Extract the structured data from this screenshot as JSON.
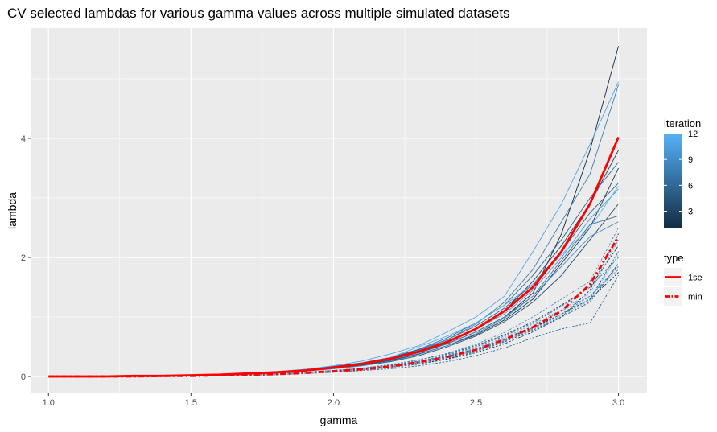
{
  "chart_data": {
    "type": "line",
    "title": "CV selected lambdas for various gamma values across multiple simulated datasets",
    "xlabel": "gamma",
    "ylabel": "lambda",
    "xlim": [
      0.94,
      3.1
    ],
    "ylim": [
      -0.27,
      5.85
    ],
    "xticks": [
      1.0,
      1.5,
      2.0,
      2.5,
      3.0
    ],
    "xtick_labels": [
      "1.0",
      "1.5",
      "2.0",
      "2.5",
      "3.0"
    ],
    "yticks": [
      0,
      2,
      4
    ],
    "ytick_labels": [
      "0",
      "2",
      "4"
    ],
    "grid": true,
    "legend_position": "right",
    "colors": {
      "panel": "#ebebeb",
      "grid": "#ffffff",
      "iteration_low": "#132b43",
      "iteration_high": "#56b1f7",
      "summary": "#ff0000"
    },
    "x": [
      1.0,
      1.1,
      1.2,
      1.3,
      1.4,
      1.5,
      1.6,
      1.7,
      1.8,
      1.9,
      2.0,
      2.1,
      2.2,
      2.3,
      2.4,
      2.5,
      2.6,
      2.7,
      2.8,
      2.9,
      3.0
    ],
    "series": [
      {
        "type": "1se",
        "iteration": 1,
        "values": [
          0,
          0,
          0,
          0.01,
          0.01,
          0.02,
          0.03,
          0.05,
          0.07,
          0.11,
          0.15,
          0.21,
          0.29,
          0.4,
          0.55,
          0.75,
          1.0,
          1.4,
          2.4,
          3.8,
          5.55
        ]
      },
      {
        "type": "1se",
        "iteration": 2,
        "values": [
          0,
          0,
          0,
          0.01,
          0.01,
          0.02,
          0.03,
          0.04,
          0.06,
          0.1,
          0.14,
          0.19,
          0.27,
          0.38,
          0.52,
          0.7,
          0.95,
          1.3,
          1.9,
          2.5,
          3.5
        ]
      },
      {
        "type": "1se",
        "iteration": 3,
        "values": [
          0,
          0,
          0,
          0.01,
          0.01,
          0.02,
          0.03,
          0.05,
          0.07,
          0.1,
          0.15,
          0.2,
          0.28,
          0.42,
          0.6,
          0.8,
          1.1,
          1.6,
          2.2,
          2.9,
          3.8
        ]
      },
      {
        "type": "1se",
        "iteration": 4,
        "values": [
          0,
          0,
          0,
          0,
          0.01,
          0.02,
          0.02,
          0.04,
          0.06,
          0.09,
          0.13,
          0.18,
          0.25,
          0.35,
          0.5,
          0.68,
          0.92,
          1.25,
          1.7,
          2.3,
          2.9
        ]
      },
      {
        "type": "1se",
        "iteration": 5,
        "values": [
          0,
          0,
          0,
          0.01,
          0.01,
          0.02,
          0.03,
          0.05,
          0.07,
          0.11,
          0.16,
          0.22,
          0.31,
          0.45,
          0.62,
          0.85,
          1.15,
          1.55,
          2.1,
          2.75,
          3.25
        ]
      },
      {
        "type": "1se",
        "iteration": 6,
        "values": [
          0,
          0,
          0,
          0.01,
          0.01,
          0.02,
          0.03,
          0.05,
          0.08,
          0.12,
          0.17,
          0.23,
          0.32,
          0.46,
          0.65,
          0.9,
          1.2,
          1.7,
          2.3,
          3.0,
          3.6
        ]
      },
      {
        "type": "1se",
        "iteration": 7,
        "values": [
          0,
          0,
          0,
          0,
          0.01,
          0.02,
          0.02,
          0.04,
          0.06,
          0.09,
          0.14,
          0.2,
          0.28,
          0.4,
          0.55,
          0.75,
          1.0,
          1.35,
          1.95,
          2.55,
          2.7
        ]
      },
      {
        "type": "1se",
        "iteration": 8,
        "values": [
          0,
          0,
          0,
          0.01,
          0.01,
          0.02,
          0.03,
          0.05,
          0.07,
          0.1,
          0.15,
          0.21,
          0.3,
          0.44,
          0.62,
          0.88,
          1.25,
          1.8,
          2.6,
          3.4,
          4.9
        ]
      },
      {
        "type": "1se",
        "iteration": 9,
        "values": [
          0,
          0,
          0,
          0.01,
          0.01,
          0.02,
          0.03,
          0.04,
          0.06,
          0.09,
          0.13,
          0.18,
          0.26,
          0.37,
          0.52,
          0.72,
          0.98,
          1.35,
          1.85,
          2.35,
          2.6
        ]
      },
      {
        "type": "1se",
        "iteration": 10,
        "values": [
          0,
          0,
          0,
          0.01,
          0.01,
          0.02,
          0.03,
          0.05,
          0.07,
          0.11,
          0.16,
          0.22,
          0.31,
          0.44,
          0.6,
          0.8,
          1.05,
          1.45,
          2.0,
          2.65,
          3.15
        ]
      },
      {
        "type": "1se",
        "iteration": 11,
        "values": [
          0,
          0,
          0,
          0.01,
          0.01,
          0.02,
          0.03,
          0.05,
          0.08,
          0.12,
          0.18,
          0.26,
          0.38,
          0.52,
          0.75,
          1.0,
          1.35,
          2.1,
          2.9,
          3.9,
          4.95
        ]
      },
      {
        "type": "1se",
        "iteration": 12,
        "values": [
          0,
          0,
          0,
          0.01,
          0.01,
          0.02,
          0.03,
          0.04,
          0.07,
          0.1,
          0.15,
          0.21,
          0.32,
          0.5,
          0.68,
          0.9,
          1.2,
          1.55,
          2.05,
          2.5,
          3.2
        ]
      },
      {
        "type": "min",
        "iteration": 1,
        "values": [
          0,
          0,
          0,
          0,
          0.01,
          0.01,
          0.02,
          0.03,
          0.04,
          0.06,
          0.09,
          0.13,
          0.18,
          0.25,
          0.34,
          0.46,
          0.62,
          0.82,
          1.05,
          1.3,
          1.75
        ]
      },
      {
        "type": "min",
        "iteration": 2,
        "values": [
          0,
          0,
          0,
          0,
          0.01,
          0.01,
          0.02,
          0.03,
          0.04,
          0.06,
          0.08,
          0.11,
          0.15,
          0.21,
          0.29,
          0.4,
          0.55,
          0.75,
          1.0,
          1.45,
          2.4
        ]
      },
      {
        "type": "min",
        "iteration": 3,
        "values": [
          0,
          0,
          0,
          0,
          0.01,
          0.01,
          0.02,
          0.03,
          0.05,
          0.07,
          0.1,
          0.14,
          0.2,
          0.28,
          0.38,
          0.52,
          0.7,
          0.92,
          1.2,
          1.5,
          2.2
        ]
      },
      {
        "type": "min",
        "iteration": 4,
        "values": [
          0,
          0,
          0,
          0,
          0.01,
          0.01,
          0.02,
          0.02,
          0.04,
          0.05,
          0.08,
          0.11,
          0.15,
          0.22,
          0.3,
          0.42,
          0.58,
          0.78,
          1.0,
          1.25,
          1.9
        ]
      },
      {
        "type": "min",
        "iteration": 5,
        "values": [
          0,
          0,
          0,
          0,
          0.01,
          0.01,
          0.02,
          0.03,
          0.04,
          0.06,
          0.09,
          0.12,
          0.17,
          0.24,
          0.33,
          0.45,
          0.6,
          0.8,
          1.05,
          1.3,
          2.1
        ]
      },
      {
        "type": "min",
        "iteration": 6,
        "values": [
          0,
          0,
          0,
          0,
          0.01,
          0.01,
          0.01,
          0.02,
          0.03,
          0.05,
          0.07,
          0.1,
          0.13,
          0.18,
          0.25,
          0.35,
          0.48,
          0.65,
          0.8,
          0.9,
          1.7
        ]
      },
      {
        "type": "min",
        "iteration": 7,
        "values": [
          0,
          0,
          0,
          0,
          0.01,
          0.01,
          0.02,
          0.03,
          0.04,
          0.06,
          0.09,
          0.13,
          0.19,
          0.26,
          0.36,
          0.5,
          0.68,
          0.9,
          1.18,
          1.5,
          2.0
        ]
      },
      {
        "type": "min",
        "iteration": 8,
        "values": [
          0,
          0,
          0,
          0,
          0.01,
          0.01,
          0.02,
          0.03,
          0.04,
          0.06,
          0.08,
          0.12,
          0.16,
          0.23,
          0.32,
          0.44,
          0.6,
          0.8,
          1.05,
          1.35,
          1.85
        ]
      },
      {
        "type": "min",
        "iteration": 9,
        "values": [
          0,
          0,
          0,
          0,
          0.01,
          0.01,
          0.02,
          0.03,
          0.05,
          0.07,
          0.1,
          0.14,
          0.2,
          0.28,
          0.39,
          0.54,
          0.74,
          1.0,
          1.3,
          1.6,
          2.5
        ]
      },
      {
        "type": "min",
        "iteration": 10,
        "values": [
          0,
          0,
          0,
          0,
          0.01,
          0.01,
          0.02,
          0.03,
          0.04,
          0.06,
          0.09,
          0.12,
          0.17,
          0.24,
          0.33,
          0.46,
          0.62,
          0.85,
          1.1,
          1.35,
          1.8
        ]
      },
      {
        "type": "min",
        "iteration": 11,
        "values": [
          0,
          0,
          0,
          0,
          0.01,
          0.01,
          0.02,
          0.03,
          0.04,
          0.06,
          0.09,
          0.13,
          0.18,
          0.25,
          0.35,
          0.48,
          0.65,
          0.88,
          1.12,
          1.4,
          2.3
        ]
      },
      {
        "type": "min",
        "iteration": 12,
        "values": [
          0,
          0,
          0,
          0,
          0.01,
          0.01,
          0.02,
          0.02,
          0.04,
          0.05,
          0.08,
          0.11,
          0.15,
          0.22,
          0.31,
          0.43,
          0.59,
          0.8,
          1.02,
          1.28,
          2.05
        ]
      }
    ],
    "summary_series": [
      {
        "name": "1se",
        "style": "solid",
        "values": [
          0,
          0,
          0,
          0.01,
          0.01,
          0.02,
          0.03,
          0.05,
          0.07,
          0.1,
          0.15,
          0.21,
          0.3,
          0.42,
          0.58,
          0.8,
          1.1,
          1.5,
          2.1,
          2.9,
          4.02
        ]
      },
      {
        "name": "min",
        "style": "dashed",
        "values": [
          0,
          0,
          0,
          0,
          0.01,
          0.01,
          0.02,
          0.03,
          0.04,
          0.06,
          0.09,
          0.12,
          0.17,
          0.24,
          0.33,
          0.45,
          0.62,
          0.83,
          1.1,
          1.55,
          2.35
        ]
      }
    ],
    "legend": {
      "colorbar": {
        "title": "iteration",
        "min": 1,
        "max": 12,
        "ticks": [
          3,
          6,
          9,
          12
        ],
        "tick_labels": [
          "3",
          "6",
          "9",
          "12"
        ]
      },
      "linetype": {
        "title": "type",
        "entries": [
          {
            "label": "1se",
            "style": "solid"
          },
          {
            "label": "min",
            "style": "dashed"
          }
        ]
      }
    }
  }
}
